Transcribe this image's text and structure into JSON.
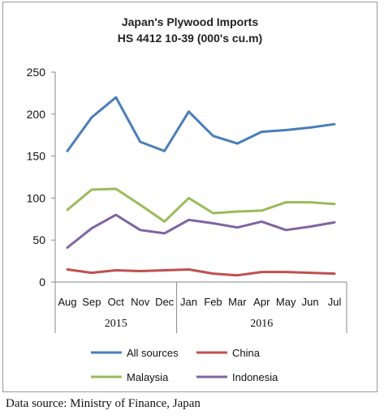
{
  "source_note": "Data source: Ministry of Finance, Japan",
  "chart_data": {
    "type": "line",
    "title_line1": "Japan's Plywood Imports",
    "title_line2": "HS 4412 10-39  (000's cu.m)",
    "categories": [
      "Aug",
      "Sep",
      "Oct",
      "Nov",
      "Dec",
      "Jan",
      "Feb",
      "Mar",
      "Apr",
      "May",
      "Jun",
      "Jul"
    ],
    "year_groups": [
      {
        "label": "2015",
        "months": 5
      },
      {
        "label": "2016",
        "months": 7
      }
    ],
    "yticks": [
      "0",
      "50",
      "100",
      "150",
      "200",
      "250"
    ],
    "ylim": [
      0,
      250
    ],
    "grid": false,
    "legend_placement": "bottom",
    "series": [
      {
        "name": "All sources",
        "color": "#4a7ebb",
        "values": [
          156,
          196,
          220,
          167,
          156,
          203,
          174,
          165,
          179,
          181,
          184,
          188
        ]
      },
      {
        "name": "China",
        "color": "#c0504d",
        "values": [
          15,
          11,
          14,
          13,
          14,
          15,
          10,
          8,
          12,
          12,
          11,
          10
        ]
      },
      {
        "name": "Malaysia",
        "color": "#9bbb59",
        "values": [
          86,
          110,
          111,
          92,
          72,
          100,
          82,
          84,
          85,
          95,
          95,
          93
        ]
      },
      {
        "name": "Indonesia",
        "color": "#8064a2",
        "values": [
          41,
          64,
          80,
          62,
          58,
          74,
          70,
          65,
          72,
          62,
          66,
          71
        ]
      }
    ]
  }
}
